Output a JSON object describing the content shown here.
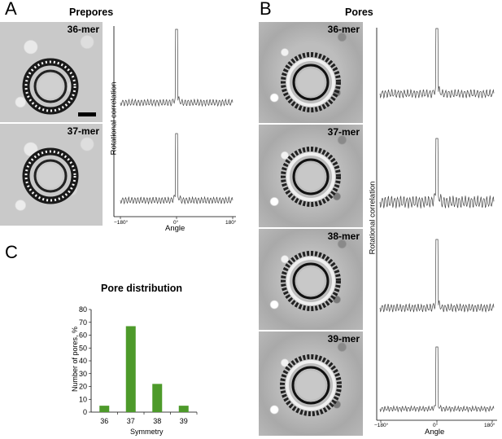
{
  "panel_a": {
    "letter": "A",
    "title": "Prepores",
    "tiles": [
      {
        "label": "36-mer"
      },
      {
        "label": "37-mer"
      }
    ],
    "ylabel": "Rotational correlation",
    "xlabel": "Angle",
    "xticks": [
      "−180°",
      "0°",
      "180°"
    ]
  },
  "panel_b": {
    "letter": "B",
    "title": "Pores",
    "tiles": [
      {
        "label": "36-mer"
      },
      {
        "label": "37-mer"
      },
      {
        "label": "38-mer"
      },
      {
        "label": "39-mer"
      }
    ],
    "ylabel": "Rotational correlation",
    "xlabel": "Angle",
    "xticks": [
      "−180°",
      "0°",
      "180°"
    ]
  },
  "panel_c": {
    "letter": "C",
    "title": "Pore distribution"
  },
  "chart_data": {
    "type": "bar",
    "categories": [
      "36",
      "37",
      "38",
      "39"
    ],
    "values": [
      5,
      67,
      22,
      5
    ],
    "title": "",
    "xlabel": "Symmetry",
    "ylabel": "Number of pores, %",
    "ylim": [
      0,
      80
    ],
    "yticks": [
      "0",
      "10",
      "20",
      "30",
      "40",
      "50",
      "60",
      "70",
      "80"
    ],
    "bar_color": "#4d9a2a"
  }
}
